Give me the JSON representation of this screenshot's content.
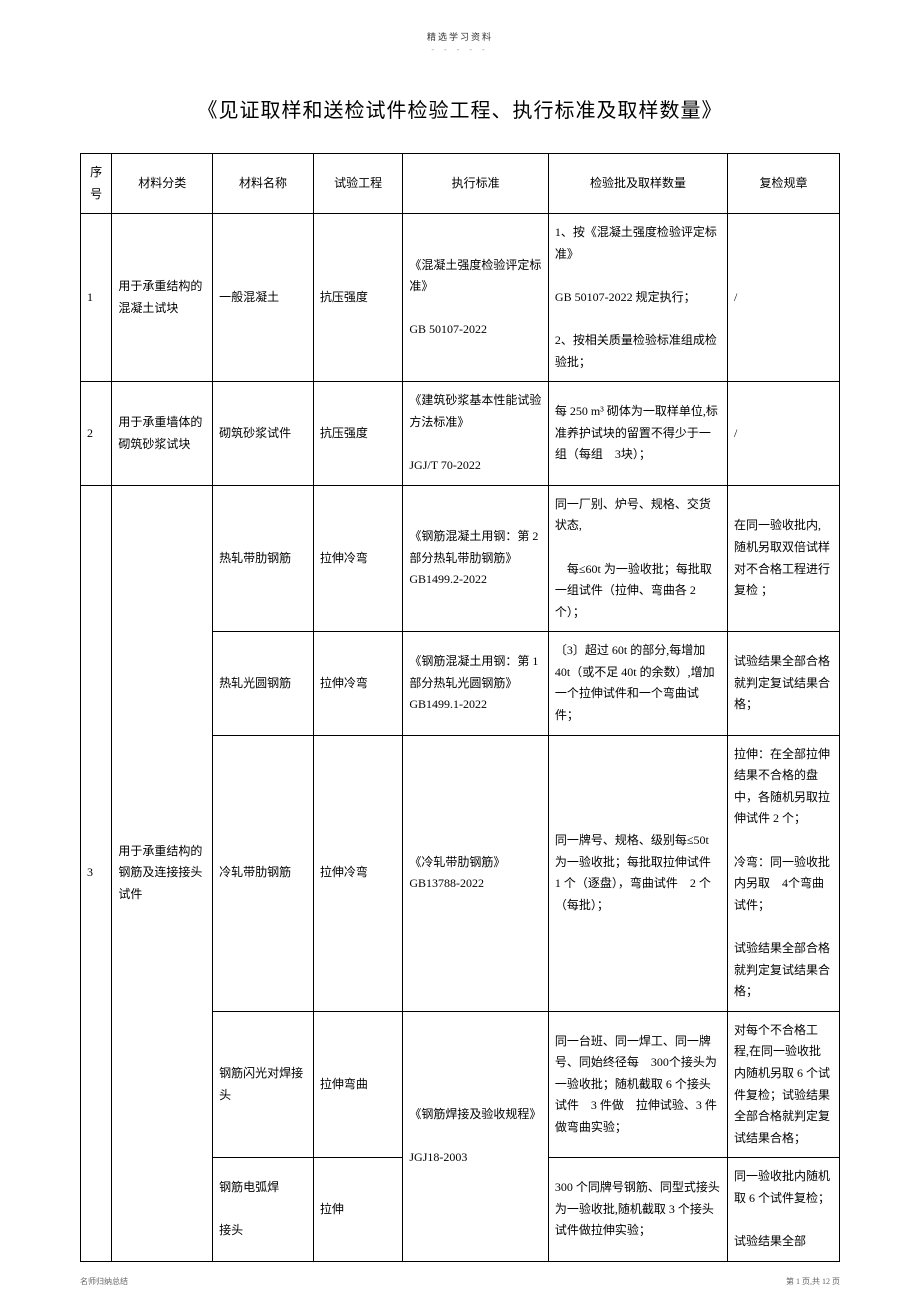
{
  "header": {
    "top_label": "精选学习资料",
    "top_dash": "- - - - -"
  },
  "title": "《见证取样和送检试件检验工程、执行标准及取样数量》",
  "columns": {
    "seq": "序号",
    "category": "材料分类",
    "name": "材料名称",
    "test": "试验工程",
    "standard": "执行标准",
    "batch": "检验批及取样数量",
    "recheck": "复检规章"
  },
  "rows": [
    {
      "seq": "1",
      "category": "用于承重结构的混凝土试块",
      "name": "一般混凝土",
      "test": "抗压强度",
      "standard": "《混凝土强度检验评定标准》\n\nGB 50107-2022",
      "batch": "1、按《混凝土强度检验评定标准》\n\nGB 50107-2022 规定执行；\n\n2、按相关质量检验标准组成检验批；",
      "recheck": "/"
    },
    {
      "seq": "2",
      "category": "用于承重墙体的砌筑砂浆试块",
      "name": "砌筑砂浆试件",
      "test": "抗压强度",
      "standard": "《建筑砂浆基本性能试验方法标准》\n\nJGJ/T 70-2022",
      "batch": "每 250 m³ 砌体为一取样单位,标准养护试块的留置不得少于一组（每组　3块）；",
      "recheck": "/"
    },
    {
      "seq": "3",
      "category": "用于承重结构的钢筋及连接接头试件",
      "sub": [
        {
          "name": "热轧带肋钢筋",
          "test": "拉伸冷弯",
          "standard": "《钢筋混凝土用钢：第 2 部分热轧带肋钢筋》GB1499.2-2022",
          "batch": "同一厂别、炉号、规格、交货状态,\n\n　每≤60t 为一验收批；每批取一组试件（拉伸、弯曲各 2 个）；",
          "recheck": "在同一验收批内,随机另取双倍试样对不合格工程进行复检 ；"
        },
        {
          "name": "热轧光圆钢筋",
          "test": "拉伸冷弯",
          "standard": "《钢筋混凝土用钢：第 1 部分热轧光圆钢筋》GB1499.1-2022",
          "batch": "〔3〕超过 60t 的部分,每增加 40t（或不足 40t 的余数）,增加一个拉伸试件和一个弯曲试件；",
          "recheck": "试验结果全部合格就判定复试结果合格；"
        },
        {
          "name": "冷轧带肋钢筋",
          "test": "拉伸冷弯",
          "standard": "《冷轧带肋钢筋》GB13788-2022",
          "batch": "同一牌号、规格、级别每≤50t 为一验收批；每批取拉伸试件　1 个（逐盘），弯曲试件　2 个（每批）；",
          "recheck": "拉伸：在全部拉伸结果不合格的盘中，各随机另取拉伸试件 2 个；\n\n冷弯：同一验收批内另取　4个弯曲试件；\n\n试验结果全部合格就判定复试结果合格；"
        },
        {
          "name": "钢筋闪光对焊接头",
          "test": "拉伸弯曲",
          "standard": "《钢筋焊接及验收规程》\n\nJGJ18-2003",
          "batch": "同一台班、同一焊工、同一牌号、同始终径每　300个接头为一验收批；随机截取 6 个接头试件　3 件做　拉伸试验、3 件做弯曲实验；",
          "recheck": "对每个不合格工程,在同一验收批内随机另取 6 个试件复检；试验结果全部合格就判定复试结果合格；"
        },
        {
          "name": "钢筋电弧焊\n\n接头",
          "test": "拉伸",
          "batch": "300 个同牌号钢筋、同型式接头为一验收批,随机截取 3 个接头试件做拉伸实验；",
          "recheck": "同一验收批内随机取 6 个试件复检；\n\n试验结果全部"
        }
      ]
    }
  ],
  "footer": {
    "left": "名师归纳总结",
    "right": "第 1 页,共 12 页"
  }
}
